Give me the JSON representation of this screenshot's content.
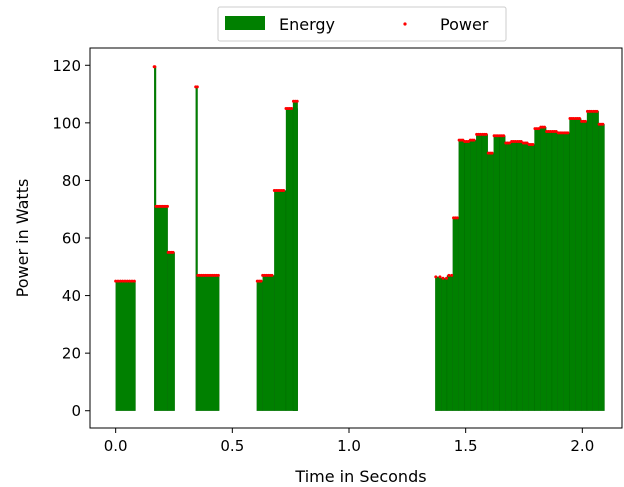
{
  "chart_data": {
    "type": "bar",
    "xlabel": "Time in Seconds",
    "ylabel": "Power in Watts",
    "xlim": [
      -0.11,
      2.17
    ],
    "ylim": [
      -6,
      126
    ],
    "xticks": [
      0.0,
      0.5,
      1.0,
      1.5,
      2.0
    ],
    "xtick_labels": [
      "0.0",
      "0.5",
      "1.0",
      "1.5",
      "2.0"
    ],
    "yticks": [
      0,
      20,
      40,
      60,
      80,
      100,
      120
    ],
    "ytick_labels": [
      "0",
      "20",
      "40",
      "60",
      "80",
      "100",
      "120"
    ],
    "legend": {
      "placement": "top-center",
      "entries": [
        "Energy",
        "Power"
      ]
    },
    "colors": {
      "energy": "#008000",
      "power": "#ff0000"
    },
    "series": [
      {
        "name": "Energy",
        "kind": "bar",
        "bars": [
          {
            "x": 0.0,
            "w": 0.085,
            "y": 45
          },
          {
            "x": 0.165,
            "w": 0.008,
            "y": 119.5
          },
          {
            "x": 0.173,
            "w": 0.05,
            "y": 71
          },
          {
            "x": 0.223,
            "w": 0.03,
            "y": 55
          },
          {
            "x": 0.343,
            "w": 0.008,
            "y": 112.5
          },
          {
            "x": 0.351,
            "w": 0.093,
            "y": 47
          },
          {
            "x": 0.605,
            "w": 0.025,
            "y": 45
          },
          {
            "x": 0.63,
            "w": 0.05,
            "y": 47
          },
          {
            "x": 0.68,
            "w": 0.05,
            "y": 76.5
          },
          {
            "x": 0.73,
            "w": 0.05,
            "y": 105
          },
          {
            "x": 0.76,
            "w": 0.02,
            "y": 107.5
          },
          {
            "x": 1.37,
            "w": 0.025,
            "y": 46.5
          },
          {
            "x": 1.395,
            "w": 0.025,
            "y": 46
          },
          {
            "x": 1.42,
            "w": 0.025,
            "y": 47
          },
          {
            "x": 1.445,
            "w": 0.025,
            "y": 67
          },
          {
            "x": 1.47,
            "w": 0.025,
            "y": 94
          },
          {
            "x": 1.495,
            "w": 0.025,
            "y": 93.5
          },
          {
            "x": 1.52,
            "w": 0.025,
            "y": 94
          },
          {
            "x": 1.545,
            "w": 0.025,
            "y": 96
          },
          {
            "x": 1.57,
            "w": 0.025,
            "y": 96
          },
          {
            "x": 1.595,
            "w": 0.025,
            "y": 89.5
          },
          {
            "x": 1.62,
            "w": 0.025,
            "y": 95.5
          },
          {
            "x": 1.645,
            "w": 0.025,
            "y": 95.5
          },
          {
            "x": 1.67,
            "w": 0.025,
            "y": 93
          },
          {
            "x": 1.695,
            "w": 0.025,
            "y": 93.5
          },
          {
            "x": 1.72,
            "w": 0.025,
            "y": 93.5
          },
          {
            "x": 1.745,
            "w": 0.025,
            "y": 93
          },
          {
            "x": 1.77,
            "w": 0.025,
            "y": 92.5
          },
          {
            "x": 1.795,
            "w": 0.025,
            "y": 98
          },
          {
            "x": 1.82,
            "w": 0.025,
            "y": 98.5
          },
          {
            "x": 1.845,
            "w": 0.025,
            "y": 97
          },
          {
            "x": 1.87,
            "w": 0.025,
            "y": 97
          },
          {
            "x": 1.895,
            "w": 0.025,
            "y": 96.5
          },
          {
            "x": 1.92,
            "w": 0.025,
            "y": 96.5
          },
          {
            "x": 1.945,
            "w": 0.025,
            "y": 101.5
          },
          {
            "x": 1.97,
            "w": 0.025,
            "y": 101.5
          },
          {
            "x": 1.995,
            "w": 0.025,
            "y": 100.5
          },
          {
            "x": 2.02,
            "w": 0.025,
            "y": 104
          },
          {
            "x": 2.045,
            "w": 0.025,
            "y": 104
          },
          {
            "x": 2.07,
            "w": 0.025,
            "y": 99.5
          }
        ]
      },
      {
        "name": "Power",
        "kind": "scatter",
        "points": [
          [
            0.0,
            45
          ],
          [
            0.01,
            45
          ],
          [
            0.02,
            45
          ],
          [
            0.03,
            45
          ],
          [
            0.04,
            45
          ],
          [
            0.05,
            45
          ],
          [
            0.06,
            45
          ],
          [
            0.07,
            45
          ],
          [
            0.08,
            45
          ],
          [
            0.165,
            119.5
          ],
          [
            0.168,
            119.5
          ],
          [
            0.173,
            71
          ],
          [
            0.18,
            71
          ],
          [
            0.187,
            71
          ],
          [
            0.194,
            71
          ],
          [
            0.201,
            71
          ],
          [
            0.208,
            71
          ],
          [
            0.215,
            71
          ],
          [
            0.222,
            71
          ],
          [
            0.225,
            55
          ],
          [
            0.232,
            55
          ],
          [
            0.239,
            55
          ],
          [
            0.246,
            55
          ],
          [
            0.343,
            112.5
          ],
          [
            0.35,
            112.5
          ],
          [
            0.352,
            47
          ],
          [
            0.36,
            47
          ],
          [
            0.368,
            47
          ],
          [
            0.376,
            47
          ],
          [
            0.384,
            47
          ],
          [
            0.392,
            47
          ],
          [
            0.4,
            47
          ],
          [
            0.408,
            47
          ],
          [
            0.416,
            47
          ],
          [
            0.424,
            47
          ],
          [
            0.432,
            47
          ],
          [
            0.44,
            47
          ],
          [
            0.607,
            45
          ],
          [
            0.615,
            45
          ],
          [
            0.623,
            45
          ],
          [
            0.63,
            47
          ],
          [
            0.638,
            47
          ],
          [
            0.646,
            47
          ],
          [
            0.654,
            47
          ],
          [
            0.662,
            47
          ],
          [
            0.67,
            47
          ],
          [
            0.68,
            76.5
          ],
          [
            0.688,
            76.5
          ],
          [
            0.696,
            76.5
          ],
          [
            0.704,
            76.5
          ],
          [
            0.712,
            76.5
          ],
          [
            0.72,
            76.5
          ],
          [
            0.73,
            105
          ],
          [
            0.738,
            105
          ],
          [
            0.746,
            105
          ],
          [
            0.754,
            105
          ],
          [
            0.762,
            107.5
          ],
          [
            0.77,
            107.5
          ],
          [
            0.778,
            107.5
          ],
          [
            1.372,
            46.5
          ],
          [
            1.39,
            46.5
          ],
          [
            1.403,
            46
          ],
          [
            1.418,
            46
          ],
          [
            1.428,
            47
          ],
          [
            1.44,
            47
          ],
          [
            1.448,
            67
          ],
          [
            1.456,
            67
          ],
          [
            1.464,
            67
          ],
          [
            1.472,
            94
          ],
          [
            1.48,
            94
          ],
          [
            1.488,
            94
          ],
          [
            1.496,
            93.5
          ],
          [
            1.504,
            93.5
          ],
          [
            1.512,
            93.5
          ],
          [
            1.52,
            94
          ],
          [
            1.528,
            94
          ],
          [
            1.536,
            94
          ],
          [
            1.547,
            96
          ],
          [
            1.555,
            96
          ],
          [
            1.563,
            96
          ],
          [
            1.572,
            96
          ],
          [
            1.58,
            96
          ],
          [
            1.588,
            96
          ],
          [
            1.597,
            89.5
          ],
          [
            1.605,
            89.5
          ],
          [
            1.613,
            89.5
          ],
          [
            1.622,
            95.5
          ],
          [
            1.63,
            95.5
          ],
          [
            1.638,
            95.5
          ],
          [
            1.647,
            95.5
          ],
          [
            1.655,
            95.5
          ],
          [
            1.663,
            95.5
          ],
          [
            1.672,
            93
          ],
          [
            1.68,
            93
          ],
          [
            1.688,
            93
          ],
          [
            1.697,
            93.5
          ],
          [
            1.705,
            93.5
          ],
          [
            1.713,
            93.5
          ],
          [
            1.722,
            93.5
          ],
          [
            1.73,
            93.5
          ],
          [
            1.738,
            93.5
          ],
          [
            1.747,
            93
          ],
          [
            1.755,
            93
          ],
          [
            1.763,
            93
          ],
          [
            1.772,
            92.5
          ],
          [
            1.78,
            92.5
          ],
          [
            1.788,
            92.5
          ],
          [
            1.797,
            98
          ],
          [
            1.805,
            98
          ],
          [
            1.813,
            98
          ],
          [
            1.822,
            98.5
          ],
          [
            1.83,
            98.5
          ],
          [
            1.838,
            98.5
          ],
          [
            1.847,
            97
          ],
          [
            1.855,
            97
          ],
          [
            1.863,
            97
          ],
          [
            1.872,
            97
          ],
          [
            1.88,
            97
          ],
          [
            1.888,
            97
          ],
          [
            1.897,
            96.5
          ],
          [
            1.905,
            96.5
          ],
          [
            1.913,
            96.5
          ],
          [
            1.922,
            96.5
          ],
          [
            1.93,
            96.5
          ],
          [
            1.938,
            96.5
          ],
          [
            1.947,
            101.5
          ],
          [
            1.955,
            101.5
          ],
          [
            1.963,
            101.5
          ],
          [
            1.972,
            101.5
          ],
          [
            1.98,
            101.5
          ],
          [
            1.988,
            101.5
          ],
          [
            1.997,
            100.5
          ],
          [
            2.005,
            100.5
          ],
          [
            2.013,
            100.5
          ],
          [
            2.022,
            104
          ],
          [
            2.03,
            104
          ],
          [
            2.038,
            104
          ],
          [
            2.047,
            104
          ],
          [
            2.055,
            104
          ],
          [
            2.063,
            104
          ],
          [
            2.072,
            99.5
          ],
          [
            2.08,
            99.5
          ],
          [
            2.088,
            99.5
          ]
        ]
      }
    ]
  }
}
